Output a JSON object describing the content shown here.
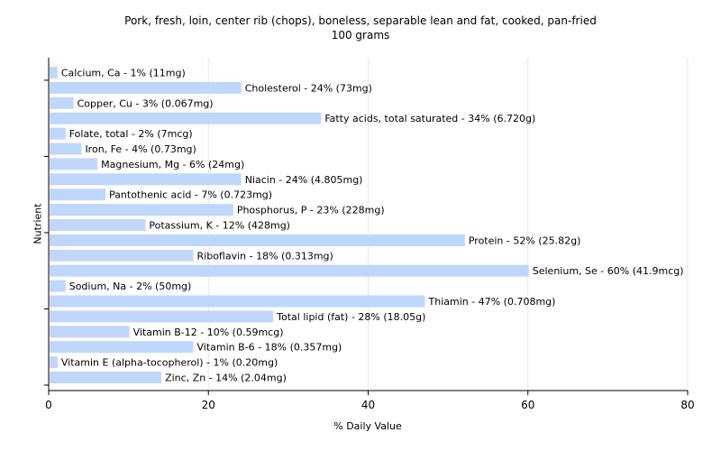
{
  "title_line1": "Pork, fresh, loin, center rib (chops), boneless, separable lean and fat, cooked, pan-fried",
  "title_line2": "100 grams",
  "colors": {
    "bar": "#bfd7fb",
    "grid": "#e6e6e6",
    "axis": "#000000"
  },
  "chart_data": {
    "type": "bar",
    "orientation": "horizontal",
    "title": "Pork, fresh, loin, center rib (chops), boneless, separable lean and fat, cooked, pan-fried",
    "subtitle": "100 grams",
    "xlabel": "% Daily Value",
    "ylabel": "Nutrient",
    "xlim": [
      0,
      80
    ],
    "xticks": [
      0,
      20,
      40,
      60,
      80
    ],
    "grid": true,
    "categories": [
      "Calcium, Ca",
      "Cholesterol",
      "Copper, Cu",
      "Fatty acids, total saturated",
      "Folate, total",
      "Iron, Fe",
      "Magnesium, Mg",
      "Niacin",
      "Pantothenic acid",
      "Phosphorus, P",
      "Potassium, K",
      "Protein",
      "Riboflavin",
      "Selenium, Se",
      "Sodium, Na",
      "Thiamin",
      "Total lipid (fat)",
      "Vitamin B-12",
      "Vitamin B-6",
      "Vitamin E (alpha-tocopherol)",
      "Zinc, Zn"
    ],
    "values": [
      1,
      24,
      3,
      34,
      2,
      4,
      6,
      24,
      7,
      23,
      12,
      52,
      18,
      60,
      2,
      47,
      28,
      10,
      18,
      1,
      14
    ],
    "labels": [
      "Calcium, Ca - 1% (11mg)",
      "Cholesterol - 24% (73mg)",
      "Copper, Cu - 3% (0.067mg)",
      "Fatty acids, total saturated - 34% (6.720g)",
      "Folate, total - 2% (7mcg)",
      "Iron, Fe - 4% (0.73mg)",
      "Magnesium, Mg - 6% (24mg)",
      "Niacin - 24% (4.805mg)",
      "Pantothenic acid - 7% (0.723mg)",
      "Phosphorus, P - 23% (228mg)",
      "Potassium, K - 12% (428mg)",
      "Protein - 52% (25.82g)",
      "Riboflavin - 18% (0.313mg)",
      "Selenium, Se - 60% (41.9mcg)",
      "Sodium, Na - 2% (50mg)",
      "Thiamin - 47% (0.708mg)",
      "Total lipid (fat) - 28% (18.05g)",
      "Vitamin B-12 - 10% (0.59mcg)",
      "Vitamin B-6 - 18% (0.357mg)",
      "Vitamin E (alpha-tocopherol) - 1% (0.20mg)",
      "Zinc, Zn - 14% (2.04mg)"
    ]
  }
}
